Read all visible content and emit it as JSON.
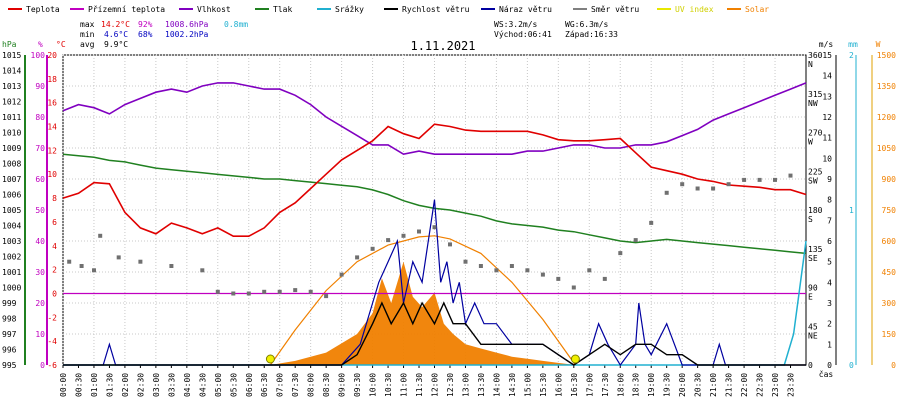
{
  "chart_data": {
    "type": "line",
    "title": "1.11.2021",
    "legend": [
      {
        "name": "Teplota",
        "color": "#e00000"
      },
      {
        "name": "Přízemní teplota",
        "color": "#c000c0"
      },
      {
        "name": "Vlhkost",
        "color": "#8000c0"
      },
      {
        "name": "Tlak",
        "color": "#208020"
      },
      {
        "name": "Srážky",
        "color": "#20b0d0"
      },
      {
        "name": "Rychlost větru",
        "color": "#000000"
      },
      {
        "name": "Náraz větru",
        "color": "#0000a0"
      },
      {
        "name": "Směr větru",
        "color": "#808080"
      },
      {
        "name": "UV index",
        "color": "#e8e800"
      },
      {
        "name": "Solar",
        "color": "#f08000"
      }
    ],
    "stats": {
      "max_label": "max",
      "min_label": "min",
      "avg_label": "avg",
      "max_temp": "14.2°C",
      "max_hum": "92%",
      "max_press": "1008.6hPa",
      "max_rain": "0.8mm",
      "min_temp": "4.6°C",
      "min_hum": "68%",
      "min_press": "1002.2hPa",
      "avg_temp": "9.9°C",
      "ws": "WS:3.2m/s",
      "wg": "WG:6.3m/s",
      "sunrise": "Východ:06:41",
      "sunset": "Západ:16:33"
    },
    "x_tick_labels": [
      "00:00",
      "00:30",
      "01:00",
      "01:30",
      "02:00",
      "02:30",
      "03:00",
      "03:30",
      "04:00",
      "04:30",
      "05:00",
      "05:30",
      "06:00",
      "06:30",
      "07:00",
      "07:30",
      "08:00",
      "08:30",
      "09:00",
      "09:30",
      "10:00",
      "10:30",
      "11:00",
      "11:30",
      "12:00",
      "12:30",
      "13:00",
      "13:30",
      "14:00",
      "14:30",
      "15:00",
      "15:30",
      "16:00",
      "16:30",
      "17:00",
      "17:30",
      "18:00",
      "18:30",
      "19:00",
      "19:30",
      "20:00",
      "20:30",
      "21:00",
      "21:30",
      "22:00",
      "22:30",
      "23:00",
      "23:30"
    ],
    "xlabel": "čas",
    "axes": {
      "hpa": {
        "unit": "hPa",
        "range": [
          995,
          1015
        ],
        "ticks": [
          995,
          996,
          997,
          998,
          999,
          1000,
          1001,
          1002,
          1003,
          1004,
          1005,
          1006,
          1007,
          1008,
          1009,
          1010,
          1011,
          1012,
          1013,
          1014,
          1015
        ],
        "color": "#208020"
      },
      "pct": {
        "unit": "%",
        "range": [
          0,
          100
        ],
        "ticks": [
          0,
          10,
          20,
          30,
          40,
          50,
          60,
          70,
          80,
          90,
          100
        ],
        "color": "#c000c0"
      },
      "temp": {
        "unit": "°C",
        "range": [
          -6,
          20
        ],
        "ticks": [
          -6,
          -4,
          -2,
          0,
          2,
          4,
          6,
          8,
          10,
          12,
          14,
          16,
          18,
          20
        ],
        "color": "#e00000"
      },
      "dir": {
        "ticks": [
          "0",
          "45 NE",
          "90 E",
          "135 SE",
          "180 S",
          "225 SW",
          "270 W",
          "315 NW",
          "360 N"
        ],
        "values": [
          0,
          45,
          90,
          135,
          180,
          225,
          270,
          315,
          360
        ]
      },
      "ms": {
        "unit": "m/s",
        "range": [
          0,
          15
        ],
        "ticks": [
          0,
          1,
          2,
          3,
          4,
          5,
          6,
          7,
          8,
          9,
          10,
          11,
          12,
          13,
          14,
          15
        ]
      },
      "mm": {
        "unit": "mm",
        "range": [
          0,
          2
        ],
        "ticks": [
          0,
          1,
          2
        ],
        "color": "#20b0d0"
      },
      "w": {
        "unit": "W",
        "range": [
          0,
          1500
        ],
        "ticks": [
          0,
          150,
          300,
          450,
          600,
          750,
          900,
          1050,
          1200,
          1350,
          1500
        ],
        "color": "#f08000"
      }
    },
    "series": [
      {
        "name": "Teplota",
        "axis": "temp",
        "x": [
          0,
          0.5,
          1,
          1.5,
          2,
          2.5,
          3,
          3.5,
          4,
          4.5,
          5,
          5.5,
          6,
          6.5,
          7,
          7.5,
          8,
          8.5,
          9,
          9.5,
          10,
          10.5,
          11,
          11.5,
          12,
          12.5,
          13,
          13.5,
          14,
          14.5,
          15,
          15.5,
          16,
          16.5,
          17,
          17.5,
          18,
          18.5,
          19,
          19.5,
          20,
          20.5,
          21,
          21.5,
          22,
          22.5,
          23,
          23.5,
          24
        ],
        "y": [
          8.0,
          8.4,
          9.3,
          9.2,
          6.8,
          5.5,
          5.0,
          5.9,
          5.5,
          5.0,
          5.5,
          4.8,
          4.8,
          5.5,
          6.8,
          7.6,
          8.8,
          10.0,
          11.2,
          12.0,
          12.8,
          14.0,
          13.4,
          13.0,
          14.2,
          14.0,
          13.7,
          13.6,
          13.6,
          13.6,
          13.6,
          13.3,
          12.9,
          12.8,
          12.8,
          12.9,
          13.0,
          11.8,
          10.6,
          10.3,
          10.0,
          9.6,
          9.4,
          9.1,
          9.0,
          8.9,
          8.7,
          8.7,
          8.3
        ]
      },
      {
        "name": "Přízemní teplota",
        "axis": "temp",
        "x": [
          0,
          24
        ],
        "y": [
          0,
          0
        ]
      },
      {
        "name": "Vlhkost",
        "axis": "pct",
        "x": [
          0,
          0.5,
          1,
          1.5,
          2,
          2.5,
          3,
          3.5,
          4,
          4.5,
          5,
          5.5,
          6,
          6.5,
          7,
          7.5,
          8,
          8.5,
          9,
          9.5,
          10,
          10.5,
          11,
          11.5,
          12,
          12.5,
          13,
          13.5,
          14,
          14.5,
          15,
          15.5,
          16,
          16.5,
          17,
          17.5,
          18,
          18.5,
          19,
          19.5,
          20,
          20.5,
          21,
          21.5,
          22,
          22.5,
          23,
          23.5,
          24
        ],
        "y": [
          82,
          84,
          83,
          81,
          84,
          86,
          88,
          89,
          88,
          90,
          91,
          91,
          90,
          89,
          89,
          87,
          84,
          80,
          77,
          74,
          71,
          71,
          68,
          69,
          68,
          68,
          68,
          68,
          68,
          68,
          69,
          69,
          70,
          71,
          71,
          70,
          70,
          71,
          71,
          72,
          74,
          76,
          79,
          81,
          83,
          85,
          87,
          89,
          91
        ]
      },
      {
        "name": "Tlak",
        "axis": "hpa",
        "x": [
          0,
          0.5,
          1,
          1.5,
          2,
          2.5,
          3,
          3.5,
          4,
          4.5,
          5,
          5.5,
          6,
          6.5,
          7,
          7.5,
          8,
          8.5,
          9,
          9.5,
          10,
          10.5,
          11,
          11.5,
          12,
          12.5,
          13,
          13.5,
          14,
          14.5,
          15,
          15.5,
          16,
          16.5,
          17,
          17.5,
          18,
          18.5,
          19,
          19.5,
          20,
          20.5,
          21,
          21.5,
          22,
          22.5,
          23,
          23.5,
          24
        ],
        "y": [
          1008.6,
          1008.5,
          1008.4,
          1008.2,
          1008.1,
          1007.9,
          1007.7,
          1007.6,
          1007.5,
          1007.4,
          1007.3,
          1007.2,
          1007.1,
          1007.0,
          1007.0,
          1006.9,
          1006.8,
          1006.7,
          1006.6,
          1006.5,
          1006.3,
          1006.0,
          1005.6,
          1005.3,
          1005.1,
          1005.0,
          1004.8,
          1004.6,
          1004.3,
          1004.1,
          1004.0,
          1003.9,
          1003.7,
          1003.6,
          1003.4,
          1003.2,
          1003.0,
          1002.9,
          1003.0,
          1003.1,
          1003.0,
          1002.9,
          1002.8,
          1002.7,
          1002.6,
          1002.5,
          1002.4,
          1002.3,
          1002.2
        ]
      },
      {
        "name": "Srážky",
        "axis": "mm",
        "x": [
          0,
          23.3,
          23.6,
          23.8,
          24
        ],
        "y": [
          0,
          0,
          0.2,
          0.5,
          0.8
        ]
      },
      {
        "name": "Rychlost větru",
        "axis": "ms",
        "x": [
          0,
          8,
          9,
          9.5,
          10,
          10.3,
          10.6,
          11,
          11.3,
          11.6,
          12,
          12.3,
          12.6,
          13,
          13.5,
          14,
          14.5,
          15,
          15.5,
          16,
          16.5,
          17,
          17.5,
          18,
          18.5,
          19,
          19.5,
          20,
          20.5,
          21,
          21.5,
          22,
          22.5,
          23,
          23.5,
          24
        ],
        "y": [
          0,
          0,
          0,
          0.5,
          2,
          3,
          2,
          3,
          2,
          3,
          2,
          3,
          2,
          2,
          1,
          1,
          1,
          1,
          1,
          0.5,
          0,
          0.5,
          1,
          0.5,
          1,
          1,
          0.5,
          0.5,
          0,
          0,
          0,
          0,
          0,
          0,
          0,
          0
        ]
      },
      {
        "name": "Náraz větru",
        "axis": "ms",
        "x": [
          0,
          1.3,
          1.5,
          1.7,
          9,
          9.6,
          10,
          10.2,
          10.5,
          10.8,
          11,
          11.3,
          11.6,
          12,
          12.1,
          12.2,
          12.4,
          12.6,
          12.8,
          13,
          13.3,
          13.6,
          14,
          14.5,
          15,
          15.5,
          16,
          16.5,
          17,
          17.3,
          17.6,
          18,
          18.5,
          18.6,
          18.8,
          19,
          19.5,
          20,
          21,
          21.2,
          21.4,
          23,
          24
        ],
        "y": [
          0,
          0,
          1,
          0,
          0,
          1,
          3,
          4,
          5,
          6,
          3,
          5,
          4,
          8,
          6,
          4,
          5,
          3,
          4,
          2,
          3,
          2,
          2,
          1,
          1,
          1,
          0.5,
          0,
          0.5,
          2,
          1,
          0,
          1,
          3,
          1,
          0.5,
          2,
          0,
          0,
          1,
          0,
          0,
          0
        ]
      },
      {
        "name": "Směr větru",
        "axis": "dir",
        "x": [
          0.2,
          0.6,
          1,
          1.2,
          1.8,
          2.5,
          3.5,
          4.5,
          5,
          5.5,
          6,
          6.5,
          7,
          7.5,
          8,
          8.5,
          9,
          9.5,
          10,
          10.5,
          11,
          11.5,
          12,
          12.5,
          13,
          13.5,
          14,
          14.5,
          15,
          15.5,
          16,
          16.5,
          17,
          17.5,
          18,
          18.5,
          19,
          19.5,
          20,
          20.5,
          21,
          21.5,
          22,
          22.5,
          23,
          23.5
        ],
        "y": [
          120,
          115,
          110,
          150,
          125,
          120,
          115,
          110,
          85,
          83,
          83,
          85,
          85,
          87,
          85,
          80,
          105,
          125,
          135,
          145,
          150,
          155,
          160,
          140,
          120,
          115,
          110,
          115,
          110,
          105,
          100,
          90,
          110,
          100,
          130,
          145,
          165,
          200,
          210,
          205,
          205,
          210,
          215,
          215,
          215,
          220
        ]
      },
      {
        "name": "UV index",
        "axis": "ms",
        "x": [
          6.7,
          16.55
        ],
        "y": [
          0,
          0
        ]
      },
      {
        "name": "Solar",
        "axis": "w",
        "x": [
          6.7,
          7.5,
          8.5,
          9.5,
          10,
          10.3,
          10.6,
          11,
          11.3,
          11.6,
          12,
          12.3,
          12.6,
          13,
          13.5,
          14,
          14.5,
          15,
          15.5,
          16,
          16.55
        ],
        "y": [
          0,
          20,
          60,
          150,
          250,
          420,
          300,
          500,
          330,
          280,
          350,
          200,
          150,
          100,
          80,
          60,
          40,
          30,
          20,
          10,
          0
        ]
      },
      {
        "name": "Solar max",
        "axis": "w",
        "x": [
          6.7,
          7.5,
          8.5,
          9.5,
          10.5,
          11.5,
          12,
          12.5,
          13.5,
          14.5,
          15.5,
          16.55
        ],
        "y": [
          0,
          170,
          360,
          500,
          580,
          620,
          625,
          610,
          540,
          400,
          220,
          0
        ]
      }
    ]
  }
}
